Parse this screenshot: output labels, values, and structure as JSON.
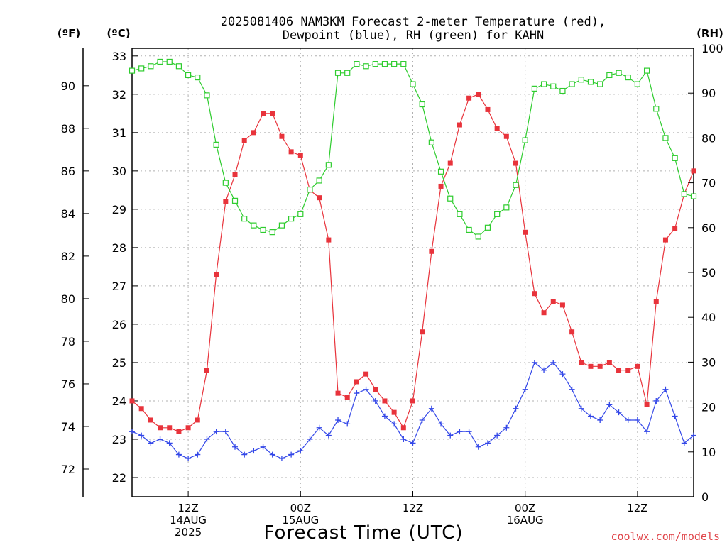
{
  "chart_data": {
    "type": "line",
    "title_line1": "2025081406 NAM3KM Forecast 2-meter Temperature (red),",
    "title_line2": "Dewpoint (blue), RH (green) for KAHN",
    "unit_f": "(ºF)",
    "unit_c": "(ºC)",
    "unit_rh": "(RH)",
    "xlabel": "Forecast Time (UTC)",
    "credit": "coolwx.com/models",
    "xlim": [
      6,
      66
    ],
    "ylim_c": [
      21.5,
      33.2
    ],
    "ylim_rh": [
      0,
      100
    ],
    "c_ticks": [
      22,
      23,
      24,
      25,
      26,
      27,
      28,
      29,
      30,
      31,
      32,
      33
    ],
    "f_ticks": [
      72,
      74,
      76,
      78,
      80,
      82,
      84,
      86,
      88,
      90
    ],
    "rh_ticks": [
      0,
      10,
      20,
      30,
      40,
      50,
      60,
      70,
      80,
      90,
      100
    ],
    "x_ticks": [
      {
        "x": 12,
        "lines": [
          "12Z",
          "14AUG",
          "2025"
        ]
      },
      {
        "x": 24,
        "lines": [
          "00Z",
          "15AUG"
        ]
      },
      {
        "x": 36,
        "lines": [
          "12Z"
        ]
      },
      {
        "x": 48,
        "lines": [
          "00Z",
          "16AUG"
        ]
      },
      {
        "x": 60,
        "lines": [
          "12Z"
        ]
      }
    ],
    "x": [
      6,
      7,
      8,
      9,
      10,
      11,
      12,
      13,
      14,
      15,
      16,
      17,
      18,
      19,
      20,
      21,
      22,
      23,
      24,
      25,
      26,
      27,
      28,
      29,
      30,
      31,
      32,
      33,
      34,
      35,
      36,
      37,
      38,
      39,
      40,
      41,
      42,
      43,
      44,
      45,
      46,
      47,
      48,
      49,
      50,
      51,
      52,
      53,
      54,
      55,
      56,
      57,
      58,
      59,
      60,
      61,
      62,
      63,
      64,
      65,
      66
    ],
    "series": [
      {
        "key": "temperature",
        "color": "#e8333b",
        "marker": "filled-square",
        "values": [
          24.0,
          23.8,
          23.5,
          23.3,
          23.3,
          23.2,
          23.3,
          23.5,
          24.8,
          27.3,
          29.2,
          29.9,
          30.8,
          31.0,
          31.5,
          31.5,
          30.9,
          30.5,
          30.4,
          29.5,
          29.3,
          28.2,
          24.2,
          24.1,
          24.5,
          24.7,
          24.3,
          24.0,
          23.7,
          23.3,
          24.0,
          25.8,
          27.9,
          29.6,
          30.2,
          31.2,
          31.9,
          32.0,
          31.6,
          31.1,
          30.9,
          30.2,
          28.4,
          26.8,
          26.3,
          26.6,
          26.5,
          25.8,
          25.0,
          24.9,
          24.9,
          25.0,
          24.8,
          24.8,
          24.9,
          23.9,
          26.6,
          28.2,
          28.5,
          29.4,
          30.0
        ]
      },
      {
        "key": "dewpoint",
        "color": "#3347e8",
        "marker": "plus",
        "values": [
          23.2,
          23.1,
          22.9,
          23.0,
          22.9,
          22.6,
          22.5,
          22.6,
          23.0,
          23.2,
          23.2,
          22.8,
          22.6,
          22.7,
          22.8,
          22.6,
          22.5,
          22.6,
          22.7,
          23.0,
          23.3,
          23.1,
          23.5,
          23.4,
          24.2,
          24.3,
          24.0,
          23.6,
          23.4,
          23.0,
          22.9,
          23.5,
          23.8,
          23.4,
          23.1,
          23.2,
          23.2,
          22.8,
          22.9,
          23.1,
          23.3,
          23.8,
          24.3,
          25.0,
          24.8,
          25.0,
          24.7,
          24.3,
          23.8,
          23.6,
          23.5,
          23.9,
          23.7,
          23.5,
          23.5,
          23.2,
          24.0,
          24.3,
          23.6,
          22.9,
          23.1
        ]
      },
      {
        "key": "rh",
        "color": "#2ecc2e",
        "marker": "open-square",
        "values": [
          95,
          95.5,
          96,
          97,
          97,
          96,
          94,
          93.5,
          89.5,
          78.5,
          70,
          66,
          62,
          60.5,
          59.5,
          59,
          60.5,
          62,
          63,
          68.5,
          70.5,
          74,
          94.5,
          94.5,
          96.5,
          96,
          96.5,
          96.5,
          96.5,
          96.5,
          92,
          87.5,
          79,
          72.5,
          66.5,
          63,
          59.5,
          58,
          60,
          63,
          64.5,
          69.5,
          79.5,
          91,
          92,
          91.5,
          90.5,
          92,
          93,
          92.5,
          92,
          94,
          94.5,
          93.5,
          92,
          95,
          86.5,
          80,
          75.5,
          67.5,
          67
        ]
      }
    ]
  }
}
